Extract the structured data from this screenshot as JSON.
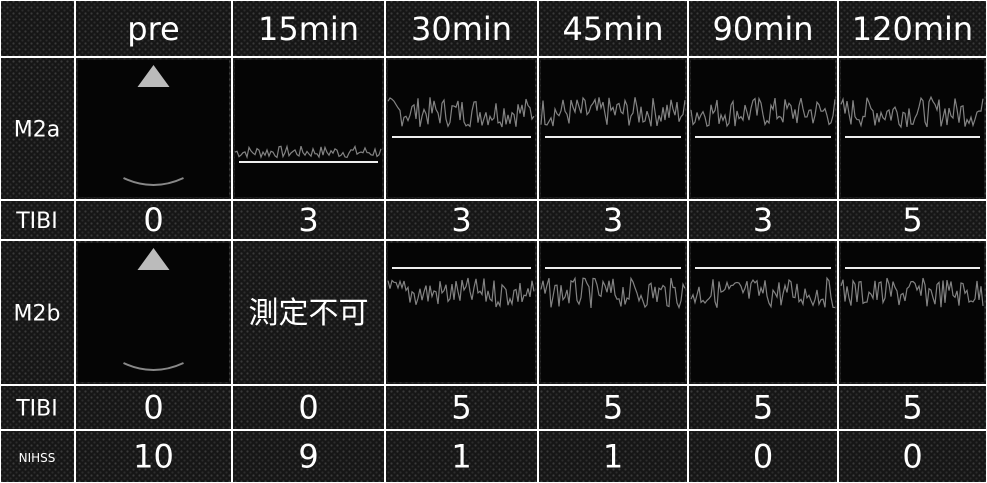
{
  "table": {
    "columns": [
      "pre",
      "15min",
      "30min",
      "45min",
      "90min",
      "120min"
    ],
    "rows": [
      {
        "label": "M2a"
      },
      {
        "label": "TIBI",
        "cells": [
          0,
          3,
          3,
          3,
          3,
          5
        ]
      },
      {
        "label": "M2b",
        "cells": [
          null,
          "測定不可",
          null,
          null,
          null,
          null
        ]
      },
      {
        "label": "TIBI",
        "cells": [
          0,
          0,
          5,
          5,
          5,
          5
        ]
      },
      {
        "label": "NIHSS",
        "cells": [
          10,
          9,
          1,
          1,
          0,
          0
        ]
      }
    ]
  }
}
